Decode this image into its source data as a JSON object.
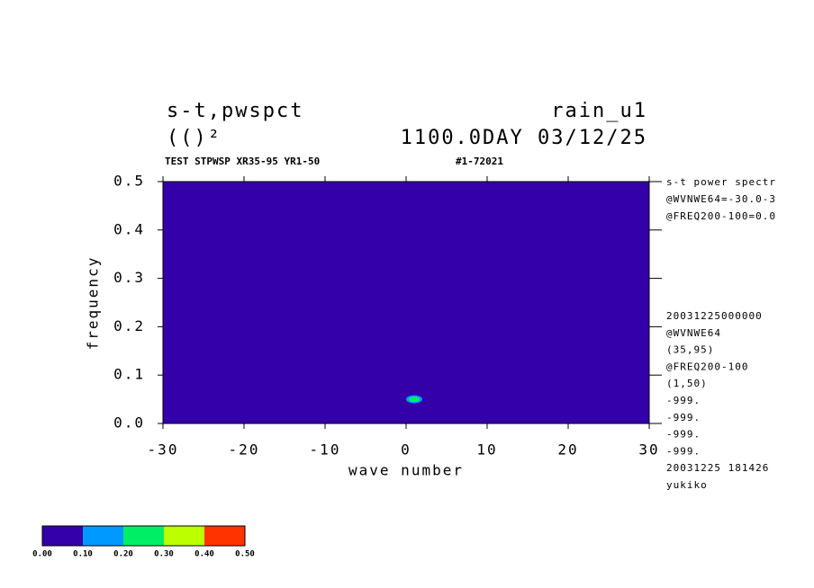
{
  "chart_data": {
    "type": "contour",
    "title_left": "s-t,pwspct",
    "title_right": "rain_u1",
    "subtitle_left": "(()²",
    "subtitle_right": "1100.0DAY 03/12/25",
    "caption_left": "TEST STPWSP XR35-95 YR1-50",
    "caption_right": "#1-72021",
    "x_label": "wave number",
    "y_label": "frequency",
    "xlim": [
      -30,
      30
    ],
    "xticks": [
      -30,
      -20,
      -10,
      0,
      10,
      20,
      30
    ],
    "ylim": [
      0,
      0.5
    ],
    "yticks": [
      {
        "value": 0,
        "label": "0.0"
      },
      0.1,
      0.2,
      0.3,
      0.4,
      0.5
    ],
    "levels": [
      {
        "value": 0,
        "label": "0.00"
      },
      {
        "value": 0.1,
        "label": "0.10"
      },
      {
        "value": 0.2,
        "label": "0.20"
      },
      {
        "value": 0.3,
        "label": "0.30"
      },
      {
        "value": 0.4,
        "label": "0.40"
      },
      {
        "value": 0.5,
        "label": "0.50"
      }
    ],
    "level_colors": [
      "#3300aa",
      "#0099ff",
      "#00ee66",
      "#bbff00",
      "#ff3300"
    ],
    "peak": {
      "x": 1,
      "y": 0.05,
      "value": 0.25
    },
    "notes_top": [
      "s-t power spectr",
      "@WVNWE64=-30.0-3",
      "@FREQ200-100=0.0"
    ],
    "notes_bottom": [
      "20031225000000",
      "@WVNWE64",
      "(35,95)",
      "@FREQ200-100",
      "(1,50)",
      "-999.",
      "-999.",
      "-999.",
      "-999.",
      "20031225 181426",
      "yukiko"
    ]
  }
}
